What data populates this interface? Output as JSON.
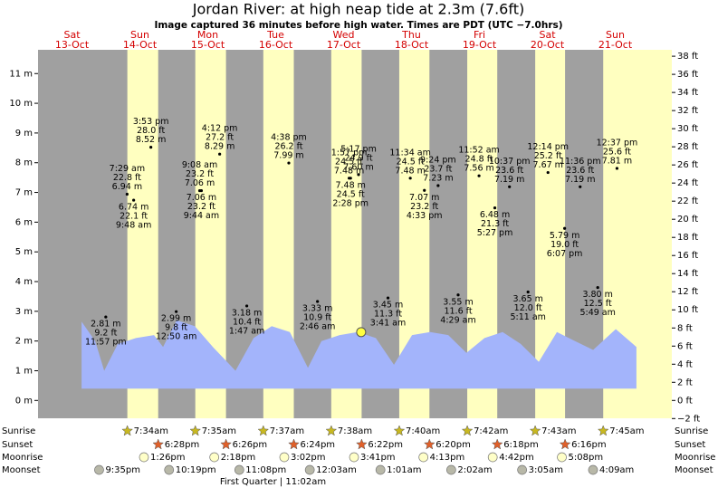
{
  "chart_data": {
    "type": "tide",
    "title": "Jordan River: at high  neap tide at 2.3m (7.6ft)",
    "subtitle": "Image captured 36 minutes before high water. Times are PDT (UTC −7.0hrs)",
    "xlim": [
      0,
      224
    ],
    "ylim": [
      -0.6,
      11.8
    ],
    "y2lim": [
      -1.97,
      38.71
    ],
    "yticks": [
      {
        "value": 0,
        "label": "0 m"
      },
      {
        "value": 1,
        "label": "1 m"
      },
      {
        "value": 2,
        "label": "2 m"
      },
      {
        "value": 3,
        "label": "3 m"
      },
      {
        "value": 4,
        "label": "4 m"
      },
      {
        "value": 5,
        "label": "5 m"
      },
      {
        "value": 6,
        "label": "6 m"
      },
      {
        "value": 7,
        "label": "7 m"
      },
      {
        "value": 8,
        "label": "8 m"
      },
      {
        "value": 9,
        "label": "9 m"
      },
      {
        "value": 10,
        "label": "10 m"
      },
      {
        "value": 11,
        "label": "11 m"
      }
    ],
    "y2ticks": [
      {
        "value": -2,
        "label": "−2 ft"
      },
      {
        "value": 0,
        "label": "0 ft"
      },
      {
        "value": 2,
        "label": "2 ft"
      },
      {
        "value": 4,
        "label": "4 ft"
      },
      {
        "value": 6,
        "label": "6 ft"
      },
      {
        "value": 8,
        "label": "8 ft"
      },
      {
        "value": 10,
        "label": "10 ft"
      },
      {
        "value": 12,
        "label": "12 ft"
      },
      {
        "value": 14,
        "label": "14 ft"
      },
      {
        "value": 16,
        "label": "16 ft"
      },
      {
        "value": 18,
        "label": "18 ft"
      },
      {
        "value": 20,
        "label": "20 ft"
      },
      {
        "value": 22,
        "label": "22 ft"
      },
      {
        "value": 24,
        "label": "24 ft"
      },
      {
        "value": 26,
        "label": "26 ft"
      },
      {
        "value": 28,
        "label": "28 ft"
      },
      {
        "value": 30,
        "label": "30 ft"
      },
      {
        "value": 32,
        "label": "32 ft"
      },
      {
        "value": 34,
        "label": "34 ft"
      },
      {
        "value": 36,
        "label": "36 ft"
      },
      {
        "value": 38,
        "label": "38 ft"
      }
    ],
    "row_labels": [
      "Sunrise",
      "Sunset",
      "Moonrise",
      "Moonset"
    ],
    "tide_curve": {
      "color": "#a3b4fb",
      "area_base": 0.4,
      "x": [
        15.4,
        20.2,
        23.4,
        28.2,
        34.6,
        41.0,
        44.2,
        49.0,
        55.4,
        61.8,
        69.8,
        76.2,
        82.6,
        89.0,
        95.4,
        100.2,
        106.6,
        113.0,
        119.4,
        125.8,
        132.2,
        138.6,
        145.0,
        151.4,
        157.8,
        164.2,
        170.6,
        177.0,
        183.4,
        189.8,
        196.2,
        204.2,
        211.5
      ],
      "values": [
        2.65,
        2.0,
        1.0,
        1.9,
        2.1,
        2.2,
        1.8,
        2.7,
        2.5,
        1.8,
        1.0,
        2.1,
        2.5,
        2.3,
        1.1,
        2.0,
        2.2,
        2.3,
        2.1,
        1.2,
        2.2,
        2.3,
        2.2,
        1.6,
        2.1,
        2.3,
        1.9,
        1.3,
        2.3,
        2.0,
        1.7,
        2.4,
        1.8
      ]
    },
    "marker": {
      "x": 114.2,
      "value": 2.3
    },
    "days": [
      {
        "name": "Sat",
        "date": "13-Oct",
        "sunrise": null,
        "sunset": null,
        "moonrise": null,
        "moonset": "9:35pm",
        "tides": [
          {
            "time": "11:57 pm",
            "value": 2.81,
            "value_label": "2.81 m",
            "ft_label": "9.2 ft",
            "pos": "below"
          }
        ]
      },
      {
        "name": "Sun",
        "date": "14-Oct",
        "sunrise": "7:34am",
        "sunset": "6:28pm",
        "moonrise": "1:26pm",
        "moonset": "10:19pm",
        "tides": [
          {
            "time": "7:29 am",
            "value": 6.94,
            "value_label": "6.94 m",
            "ft_label": "22.8 ft",
            "pos": "above"
          },
          {
            "time": "9:48 am",
            "value": 6.74,
            "value_label": "6.74 m",
            "ft_label": "22.1 ft",
            "pos": "below"
          },
          {
            "time": "3:53 pm",
            "value": 8.52,
            "value_label": "8.52 m",
            "ft_label": "28.0 ft",
            "pos": "above"
          }
        ]
      },
      {
        "name": "Mon",
        "date": "15-Oct",
        "sunrise": "7:35am",
        "sunset": "6:26pm",
        "moonrise": "2:18pm",
        "moonset": "11:08pm",
        "tides": [
          {
            "time": "12:50 am",
            "value": 2.99,
            "value_label": "2.99 m",
            "ft_label": "9.8 ft",
            "pos": "below"
          },
          {
            "time": "9:08 am",
            "value": 7.06,
            "value_label": "7.06 m",
            "ft_label": "23.2 ft",
            "pos": "above"
          },
          {
            "time": "9:44 am",
            "value": 7.06,
            "value_label": "7.06 m",
            "ft_label": "23.2 ft",
            "pos": "below"
          },
          {
            "time": "4:12 pm",
            "value": 8.29,
            "value_label": "8.29 m",
            "ft_label": "27.2 ft",
            "pos": "above"
          }
        ]
      },
      {
        "name": "Tue",
        "date": "16-Oct",
        "sunrise": "7:37am",
        "sunset": "6:24pm",
        "moonrise": "3:02pm",
        "moonset": null,
        "moon_phase": "First Quarter | 11:02am",
        "tides": [
          {
            "time": "1:47 am",
            "value": 3.18,
            "value_label": "3.18 m",
            "ft_label": "10.4 ft",
            "pos": "below"
          },
          {
            "time": "4:38 pm",
            "value": 7.99,
            "value_label": "7.99 m",
            "ft_label": "26.2 ft",
            "pos": "above"
          }
        ]
      },
      {
        "name": "Wed",
        "date": "17-Oct",
        "sunrise": "7:38am",
        "sunset": "6:22pm",
        "moonrise": "3:41pm",
        "moonset": "12:03am",
        "tides": [
          {
            "time": "2:46 am",
            "value": 3.33,
            "value_label": "3.33 m",
            "ft_label": "10.9 ft",
            "pos": "below"
          },
          {
            "time": "1:57 pm",
            "value": 7.48,
            "value_label": "7.48 m",
            "ft_label": "24.5 ft",
            "pos": "above"
          },
          {
            "time": "2:28 pm",
            "value": 7.48,
            "value_label": "7.48 m",
            "ft_label": "24.5 ft",
            "pos": "below"
          },
          {
            "time": "5:17 pm",
            "value": 7.6,
            "value_label": "7.60 m",
            "ft_label": "24.9 ft",
            "pos": "above"
          }
        ]
      },
      {
        "name": "Thu",
        "date": "18-Oct",
        "sunrise": "7:40am",
        "sunset": "6:20pm",
        "moonrise": "4:13pm",
        "moonset": "1:01am",
        "tides": [
          {
            "time": "3:41 am",
            "value": 3.45,
            "value_label": "3.45 m",
            "ft_label": "11.3 ft",
            "pos": "below"
          },
          {
            "time": "11:34 am",
            "value": 7.48,
            "value_label": "7.48 m",
            "ft_label": "24.5 ft",
            "pos": "above"
          },
          {
            "time": "4:33 pm",
            "value": 7.07,
            "value_label": "7.07 m",
            "ft_label": "23.2 ft",
            "pos": "below"
          },
          {
            "time": "9:24 pm",
            "value": 7.23,
            "value_label": "7.23 m",
            "ft_label": "23.7 ft",
            "pos": "above"
          }
        ]
      },
      {
        "name": "Fri",
        "date": "19-Oct",
        "sunrise": "7:42am",
        "sunset": "6:18pm",
        "moonrise": "4:42pm",
        "moonset": "2:02am",
        "tides": [
          {
            "time": "4:29 am",
            "value": 3.55,
            "value_label": "3.55 m",
            "ft_label": "11.6 ft",
            "pos": "below"
          },
          {
            "time": "11:52 am",
            "value": 7.56,
            "value_label": "7.56 m",
            "ft_label": "24.8 ft",
            "pos": "above"
          },
          {
            "time": "5:27 pm",
            "value": 6.48,
            "value_label": "6.48 m",
            "ft_label": "21.3 ft",
            "pos": "below"
          },
          {
            "time": "10:37 pm",
            "value": 7.19,
            "value_label": "7.19 m",
            "ft_label": "23.6 ft",
            "pos": "above"
          }
        ]
      },
      {
        "name": "Sat",
        "date": "20-Oct",
        "sunrise": "7:43am",
        "sunset": "6:16pm",
        "moonrise": "5:08pm",
        "moonset": "3:05am",
        "tides": [
          {
            "time": "5:11 am",
            "value": 3.65,
            "value_label": "3.65 m",
            "ft_label": "12.0 ft",
            "pos": "below"
          },
          {
            "time": "12:14 pm",
            "value": 7.67,
            "value_label": "7.67 m",
            "ft_label": "25.2 ft",
            "pos": "above"
          },
          {
            "time": "6:07 pm",
            "value": 5.79,
            "value_label": "5.79 m",
            "ft_label": "19.0 ft",
            "pos": "below"
          },
          {
            "time": "11:36 pm",
            "value": 7.19,
            "value_label": "7.19 m",
            "ft_label": "23.6 ft",
            "pos": "above"
          }
        ]
      },
      {
        "name": "Sun",
        "date": "21-Oct",
        "sunrise": "7:45am",
        "sunset": null,
        "moonrise": null,
        "moonset": "4:09am",
        "tides": [
          {
            "time": "5:49 am",
            "value": 3.8,
            "value_label": "3.80 m",
            "ft_label": "12.5 ft",
            "pos": "below"
          },
          {
            "time": "12:37 pm",
            "value": 7.81,
            "value_label": "7.81 m",
            "ft_label": "25.6 ft",
            "pos": "above"
          }
        ]
      }
    ]
  }
}
